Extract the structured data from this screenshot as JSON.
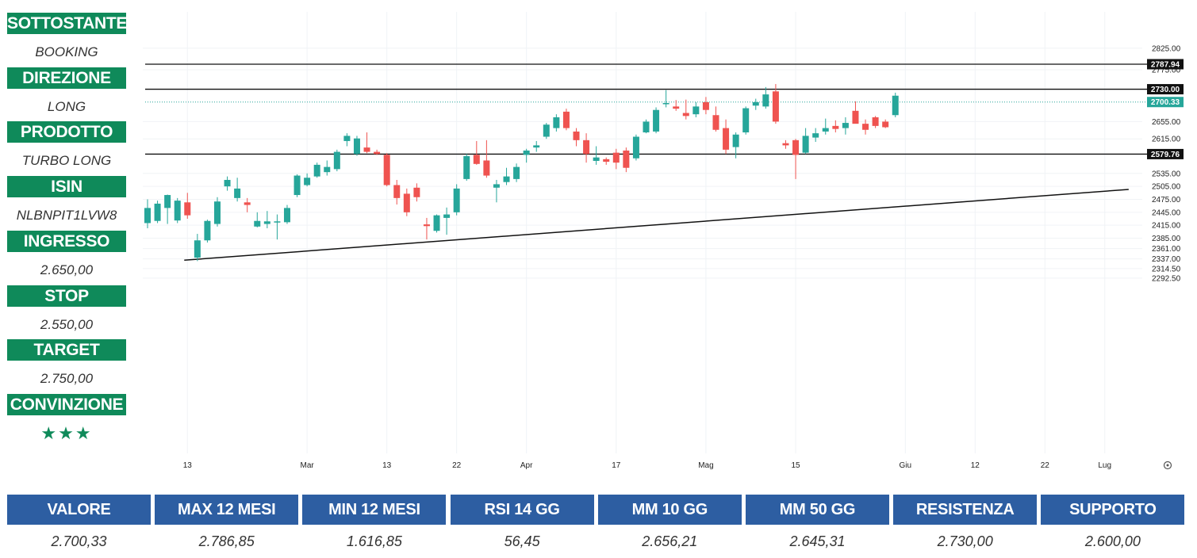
{
  "sidebar": [
    {
      "label": "SOTTOSTANTE",
      "value": "BOOKING"
    },
    {
      "label": "DIREZIONE",
      "value": "LONG"
    },
    {
      "label": "PRODOTTO",
      "value": "TURBO LONG"
    },
    {
      "label": "ISIN",
      "value": "NLBNPIT1LVW8"
    },
    {
      "label": "INGRESSO",
      "value": "2.650,00"
    },
    {
      "label": "STOP",
      "value": "2.550,00"
    },
    {
      "label": "TARGET",
      "value": "2.750,00"
    },
    {
      "label": "CONVINZIONE",
      "value": "★★★"
    }
  ],
  "stats": [
    {
      "label": "VALORE",
      "value": "2.700,33"
    },
    {
      "label": "MAX 12 MESI",
      "value": "2.786,85"
    },
    {
      "label": "MIN 12 MESI",
      "value": "1.616,85"
    },
    {
      "label": "RSI 14 GG",
      "value": "56,45"
    },
    {
      "label": "MM 10 GG",
      "value": "2.656,21"
    },
    {
      "label": "MM 50 GG",
      "value": "2.645,31"
    },
    {
      "label": "RESISTENZA",
      "value": "2.730,00"
    },
    {
      "label": "SUPPORTO",
      "value": "2.600,00"
    }
  ],
  "colors": {
    "up": "#26a69a",
    "down": "#ef5350",
    "sidebar_header": "#0f8a5a",
    "table_header": "#2d5ea2"
  },
  "chart_data": {
    "type": "candlestick",
    "y_ticks": [
      2825,
      2775,
      2655,
      2615,
      2535,
      2505,
      2475,
      2445,
      2415,
      2385,
      2361,
      2337,
      2314.5,
      2292.5
    ],
    "y_tick_labels": [
      "2825.00",
      "2775.00",
      "2655.00",
      "2615.00",
      "2535.00",
      "2505.00",
      "2475.00",
      "2445.00",
      "2415.00",
      "2385.00",
      "2361.00",
      "2337.00",
      "2314.50",
      "2292.50"
    ],
    "x_ticks": [
      {
        "label": "13",
        "index": 4
      },
      {
        "label": "Mar",
        "index": 16
      },
      {
        "label": "13",
        "index": 24
      },
      {
        "label": "22",
        "index": 31
      },
      {
        "label": "Apr",
        "index": 38
      },
      {
        "label": "17",
        "index": 47
      },
      {
        "label": "Mag",
        "index": 56
      },
      {
        "label": "15",
        "index": 65
      },
      {
        "label": "Giu",
        "index": 76
      },
      {
        "label": "12",
        "index": 83
      },
      {
        "label": "22",
        "index": 90
      },
      {
        "label": "Lug",
        "index": 96
      }
    ],
    "horizontal_lines": [
      {
        "value": 2787.94,
        "label": "2787.94"
      },
      {
        "value": 2730.0,
        "label": "2730.00"
      },
      {
        "value": 2579.76,
        "label": "2579.76"
      }
    ],
    "last_price": {
      "value": 2700.33,
      "label": "2700.33"
    },
    "trendline": {
      "start": {
        "index": 4,
        "value": 2334
      },
      "end": {
        "index": 98,
        "value": 2498
      }
    },
    "candles": [
      {
        "o": 2420,
        "h": 2475,
        "l": 2408,
        "c": 2455
      },
      {
        "o": 2425,
        "h": 2472,
        "l": 2420,
        "c": 2465
      },
      {
        "o": 2455,
        "h": 2486,
        "l": 2418,
        "c": 2485
      },
      {
        "o": 2426,
        "h": 2478,
        "l": 2420,
        "c": 2472
      },
      {
        "o": 2468,
        "h": 2490,
        "l": 2430,
        "c": 2438
      },
      {
        "o": 2340,
        "h": 2395,
        "l": 2332,
        "c": 2380
      },
      {
        "o": 2380,
        "h": 2428,
        "l": 2375,
        "c": 2425
      },
      {
        "o": 2418,
        "h": 2480,
        "l": 2412,
        "c": 2470
      },
      {
        "o": 2505,
        "h": 2528,
        "l": 2495,
        "c": 2520
      },
      {
        "o": 2478,
        "h": 2525,
        "l": 2470,
        "c": 2500
      },
      {
        "o": 2468,
        "h": 2478,
        "l": 2445,
        "c": 2462
      },
      {
        "o": 2412,
        "h": 2445,
        "l": 2410,
        "c": 2425
      },
      {
        "o": 2418,
        "h": 2448,
        "l": 2408,
        "c": 2424
      },
      {
        "o": 2424,
        "h": 2440,
        "l": 2382,
        "c": 2424
      },
      {
        "o": 2422,
        "h": 2462,
        "l": 2418,
        "c": 2455
      },
      {
        "o": 2485,
        "h": 2533,
        "l": 2480,
        "c": 2530
      },
      {
        "o": 2508,
        "h": 2535,
        "l": 2505,
        "c": 2525
      },
      {
        "o": 2528,
        "h": 2560,
        "l": 2525,
        "c": 2555
      },
      {
        "o": 2538,
        "h": 2565,
        "l": 2530,
        "c": 2550
      },
      {
        "o": 2545,
        "h": 2590,
        "l": 2540,
        "c": 2585
      },
      {
        "o": 2610,
        "h": 2628,
        "l": 2598,
        "c": 2622
      },
      {
        "o": 2580,
        "h": 2622,
        "l": 2576,
        "c": 2616
      },
      {
        "o": 2595,
        "h": 2630,
        "l": 2582,
        "c": 2585
      },
      {
        "o": 2585,
        "h": 2590,
        "l": 2578,
        "c": 2580
      },
      {
        "o": 2578,
        "h": 2582,
        "l": 2505,
        "c": 2508
      },
      {
        "o": 2508,
        "h": 2520,
        "l": 2463,
        "c": 2478
      },
      {
        "o": 2488,
        "h": 2500,
        "l": 2436,
        "c": 2445
      },
      {
        "o": 2502,
        "h": 2512,
        "l": 2470,
        "c": 2480
      },
      {
        "o": 2417,
        "h": 2432,
        "l": 2382,
        "c": 2413
      },
      {
        "o": 2402,
        "h": 2440,
        "l": 2398,
        "c": 2438
      },
      {
        "o": 2432,
        "h": 2456,
        "l": 2393,
        "c": 2440
      },
      {
        "o": 2445,
        "h": 2510,
        "l": 2438,
        "c": 2500
      },
      {
        "o": 2522,
        "h": 2580,
        "l": 2518,
        "c": 2575
      },
      {
        "o": 2578,
        "h": 2610,
        "l": 2555,
        "c": 2557
      },
      {
        "o": 2565,
        "h": 2612,
        "l": 2525,
        "c": 2530
      },
      {
        "o": 2502,
        "h": 2520,
        "l": 2468,
        "c": 2510
      },
      {
        "o": 2515,
        "h": 2548,
        "l": 2508,
        "c": 2528
      },
      {
        "o": 2522,
        "h": 2558,
        "l": 2515,
        "c": 2550
      },
      {
        "o": 2578,
        "h": 2592,
        "l": 2560,
        "c": 2588
      },
      {
        "o": 2595,
        "h": 2610,
        "l": 2585,
        "c": 2600
      },
      {
        "o": 2620,
        "h": 2652,
        "l": 2615,
        "c": 2648
      },
      {
        "o": 2640,
        "h": 2672,
        "l": 2632,
        "c": 2665
      },
      {
        "o": 2678,
        "h": 2685,
        "l": 2635,
        "c": 2640
      },
      {
        "o": 2632,
        "h": 2640,
        "l": 2598,
        "c": 2612
      },
      {
        "o": 2612,
        "h": 2628,
        "l": 2560,
        "c": 2580
      },
      {
        "o": 2564,
        "h": 2598,
        "l": 2555,
        "c": 2572
      },
      {
        "o": 2568,
        "h": 2572,
        "l": 2555,
        "c": 2562
      },
      {
        "o": 2583,
        "h": 2592,
        "l": 2545,
        "c": 2560
      },
      {
        "o": 2588,
        "h": 2595,
        "l": 2538,
        "c": 2548
      },
      {
        "o": 2570,
        "h": 2625,
        "l": 2565,
        "c": 2620
      },
      {
        "o": 2630,
        "h": 2660,
        "l": 2628,
        "c": 2655
      },
      {
        "o": 2632,
        "h": 2688,
        "l": 2628,
        "c": 2682
      },
      {
        "o": 2698,
        "h": 2728,
        "l": 2688,
        "c": 2698
      },
      {
        "o": 2690,
        "h": 2705,
        "l": 2680,
        "c": 2685
      },
      {
        "o": 2675,
        "h": 2706,
        "l": 2660,
        "c": 2668
      },
      {
        "o": 2672,
        "h": 2700,
        "l": 2665,
        "c": 2690
      },
      {
        "o": 2700,
        "h": 2712,
        "l": 2672,
        "c": 2682
      },
      {
        "o": 2670,
        "h": 2690,
        "l": 2632,
        "c": 2636
      },
      {
        "o": 2640,
        "h": 2660,
        "l": 2580,
        "c": 2590
      },
      {
        "o": 2596,
        "h": 2630,
        "l": 2570,
        "c": 2625
      },
      {
        "o": 2630,
        "h": 2690,
        "l": 2625,
        "c": 2686
      },
      {
        "o": 2692,
        "h": 2708,
        "l": 2682,
        "c": 2700
      },
      {
        "o": 2690,
        "h": 2735,
        "l": 2685,
        "c": 2718
      },
      {
        "o": 2725,
        "h": 2742,
        "l": 2650,
        "c": 2655
      },
      {
        "o": 2605,
        "h": 2612,
        "l": 2592,
        "c": 2600
      },
      {
        "o": 2612,
        "h": 2615,
        "l": 2522,
        "c": 2578
      },
      {
        "o": 2583,
        "h": 2640,
        "l": 2580,
        "c": 2622
      },
      {
        "o": 2618,
        "h": 2640,
        "l": 2608,
        "c": 2628
      },
      {
        "o": 2632,
        "h": 2662,
        "l": 2625,
        "c": 2640
      },
      {
        "o": 2645,
        "h": 2658,
        "l": 2630,
        "c": 2638
      },
      {
        "o": 2640,
        "h": 2665,
        "l": 2625,
        "c": 2652
      },
      {
        "o": 2680,
        "h": 2702,
        "l": 2652,
        "c": 2650
      },
      {
        "o": 2650,
        "h": 2660,
        "l": 2625,
        "c": 2636
      },
      {
        "o": 2665,
        "h": 2668,
        "l": 2640,
        "c": 2645
      },
      {
        "o": 2655,
        "h": 2660,
        "l": 2640,
        "c": 2642
      },
      {
        "o": 2670,
        "h": 2722,
        "l": 2665,
        "c": 2715
      }
    ]
  }
}
